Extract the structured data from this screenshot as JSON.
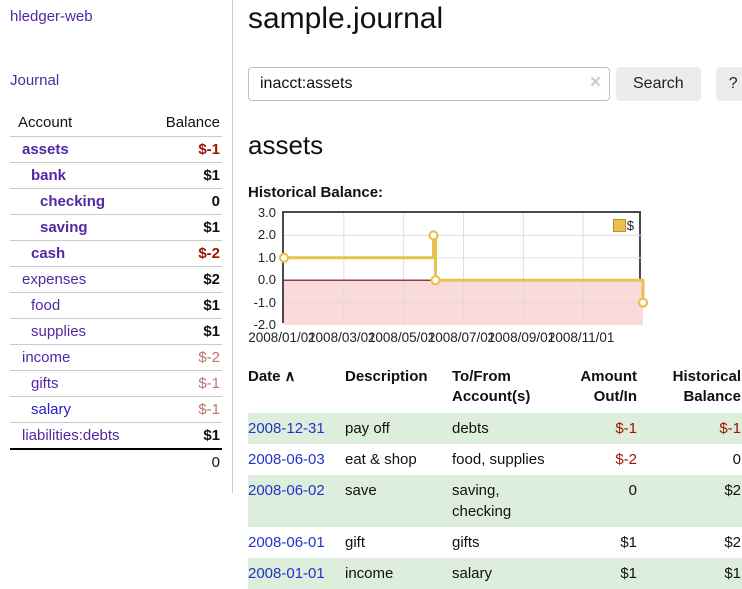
{
  "app": {
    "title": "hledger-web"
  },
  "sidebar": {
    "journal_link": "Journal",
    "accounts_table": {
      "headers": {
        "account": "Account",
        "balance": "Balance"
      },
      "rows": [
        {
          "account": "assets",
          "balance": "$-1",
          "level": 1,
          "bold": true,
          "link_style": "purple",
          "balance_style": "negative-strong"
        },
        {
          "account": "bank",
          "balance": "$1",
          "level": 2,
          "bold": true,
          "link_style": "purple",
          "balance_style": "positive"
        },
        {
          "account": "checking",
          "balance": "0",
          "level": 3,
          "bold": true,
          "link_style": "purple",
          "balance_style": "positive"
        },
        {
          "account": "saving",
          "balance": "$1",
          "level": 3,
          "bold": true,
          "link_style": "purple",
          "balance_style": "positive"
        },
        {
          "account": "cash",
          "balance": "$-2",
          "level": 2,
          "bold": true,
          "link_style": "purple",
          "balance_style": "negative-strong"
        },
        {
          "account": "expenses",
          "balance": "$2",
          "level": 1,
          "bold": false,
          "link_style": "purple",
          "balance_style": "positive"
        },
        {
          "account": "food",
          "balance": "$1",
          "level": 2,
          "bold": false,
          "link_style": "purple",
          "balance_style": "positive"
        },
        {
          "account": "supplies",
          "balance": "$1",
          "level": 2,
          "bold": false,
          "link_style": "purple",
          "balance_style": "positive"
        },
        {
          "account": "income",
          "balance": "$-2",
          "level": 1,
          "bold": false,
          "link_style": "purple",
          "balance_style": "negative-soft"
        },
        {
          "account": "gifts",
          "balance": "$-1",
          "level": 2,
          "bold": false,
          "link_style": "purple",
          "balance_style": "negative-soft"
        },
        {
          "account": "salary",
          "balance": "$-1",
          "level": 2,
          "bold": false,
          "link_style": "blue",
          "balance_style": "negative-soft"
        },
        {
          "account": "liabilities:debts",
          "balance": "$1",
          "level": 1,
          "bold": false,
          "link_style": "purple",
          "balance_style": "positive"
        }
      ],
      "total": "0"
    }
  },
  "main": {
    "title": "sample.journal",
    "search": {
      "value": "inacct:assets",
      "clear_icon": "×",
      "search_button": "Search",
      "help_button": "?"
    },
    "account_heading": "assets",
    "chart_heading": "Historical Balance:"
  },
  "chart_data": {
    "type": "line",
    "title": "Historical Balance:",
    "step": true,
    "series": [
      {
        "name": "$",
        "points": [
          [
            "2008-01-01",
            1
          ],
          [
            "2008-06-01",
            2
          ],
          [
            "2008-06-03",
            0
          ],
          [
            "2008-12-31",
            -1
          ]
        ]
      }
    ],
    "x_range": [
      "2008-01-01",
      "2008-12-31"
    ],
    "ylim": [
      -2.0,
      3.0
    ],
    "yticks": [
      3.0,
      2.0,
      1.0,
      0.0,
      -1.0,
      -2.0
    ],
    "xticks": [
      "2008/01/01",
      "2008/03/01",
      "2008/05/01",
      "2008/07/01",
      "2008/09/01",
      "2008/11/01"
    ],
    "legend": {
      "label": "$",
      "position": "top-right"
    },
    "grid": true,
    "colors": {
      "line": "#e9c24d",
      "marker_fill": "#ffffff",
      "negative_region": "#fadada",
      "zero_line": "#7a0000",
      "gridline": "#dddddd"
    }
  },
  "register": {
    "sort_icon": "∧",
    "headers": [
      {
        "line1": "Date",
        "line2": ""
      },
      {
        "line1": "Description",
        "line2": ""
      },
      {
        "line1": "To/From",
        "line2": "Account(s)"
      },
      {
        "line1": "Amount",
        "line2": "Out/In"
      },
      {
        "line1": "Historical",
        "line2": "Balance"
      }
    ],
    "rows": [
      {
        "date": "2008-12-31",
        "description": "pay off",
        "accounts": "debts",
        "amount": "$-1",
        "balance": "$-1",
        "amount_negative": true,
        "balance_negative": true
      },
      {
        "date": "2008-06-03",
        "description": "eat & shop",
        "accounts": "food, supplies",
        "amount": "$-2",
        "balance": "0",
        "amount_negative": true,
        "balance_negative": false
      },
      {
        "date": "2008-06-02",
        "description": "save",
        "accounts": "saving, checking",
        "amount": "0",
        "balance": "$2",
        "amount_negative": false,
        "balance_negative": false
      },
      {
        "date": "2008-06-01",
        "description": "gift",
        "accounts": "gifts",
        "amount": "$1",
        "balance": "$2",
        "amount_negative": false,
        "balance_negative": false
      },
      {
        "date": "2008-01-01",
        "description": "income",
        "accounts": "salary",
        "amount": "$1",
        "balance": "$1",
        "amount_negative": false,
        "balance_negative": false
      }
    ]
  }
}
